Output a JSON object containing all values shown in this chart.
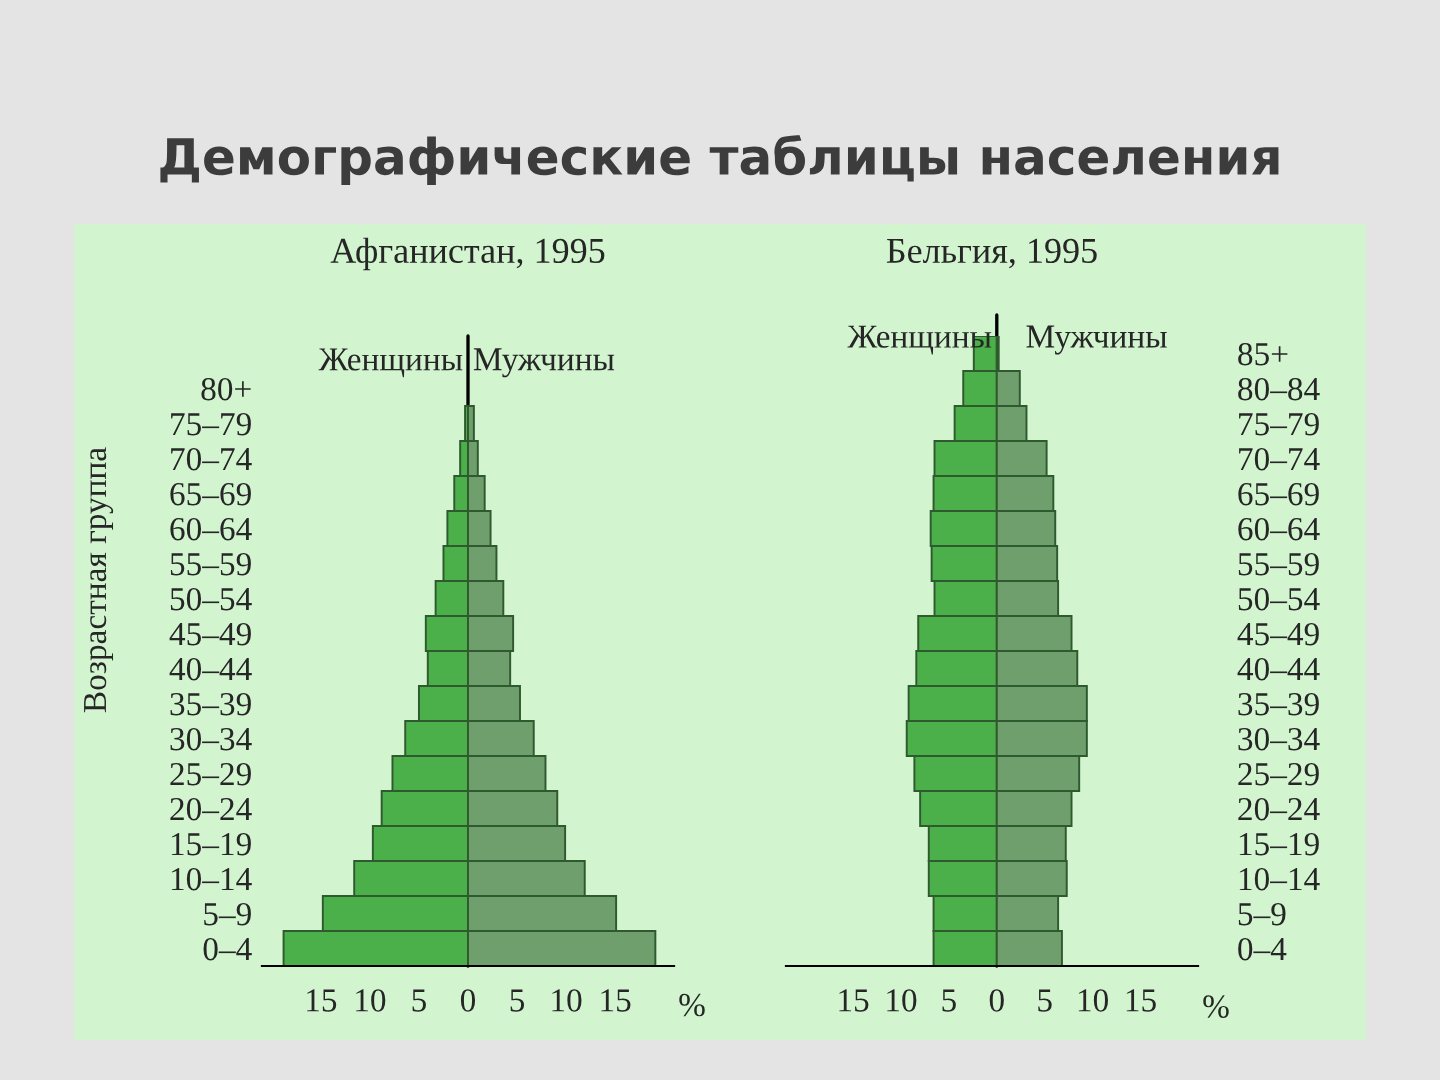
{
  "chart_data": [
    {
      "type": "bar",
      "orientation": "horizontal",
      "title": "Афганистан, 1995",
      "ylabel": "Возрастная группа",
      "xlabel": "%",
      "annotations": [
        "Демографические таблицы населения"
      ],
      "categories": [
        "80+",
        "75–79",
        "70–74",
        "65–69",
        "60–64",
        "55–59",
        "50–54",
        "45–49",
        "40–44",
        "35–39",
        "30–34",
        "25–29",
        "20–24",
        "15–19",
        "10–14",
        "5–9",
        "0–4"
      ],
      "series": [
        {
          "name": "Женщины",
          "color": "#4cb04a",
          "values": [
            null,
            -0.3,
            -0.8,
            -1.4,
            -2.1,
            -2.5,
            -3.3,
            -4.3,
            -4.1,
            -5.0,
            -6.4,
            -7.7,
            -8.8,
            -9.7,
            -11.6,
            -14.8,
            -18.8
          ]
        },
        {
          "name": "Мужчины",
          "color": "#6f9f6c",
          "values": [
            null,
            0.6,
            1.0,
            1.7,
            2.3,
            2.9,
            3.6,
            4.6,
            4.3,
            5.3,
            6.7,
            7.9,
            9.1,
            9.9,
            11.9,
            15.1,
            19.1
          ]
        }
      ],
      "xlim": [
        -21,
        21
      ],
      "xticks": [
        {
          "value": -15,
          "label": "15"
        },
        {
          "value": -10,
          "label": "10"
        },
        {
          "value": -5,
          "label": "5"
        },
        0,
        5,
        10,
        15
      ],
      "ref_lines": [
        {
          "axis": "x",
          "value": 0,
          "color": "#000000"
        }
      ],
      "grid": false,
      "legend": false,
      "stacked": true
    },
    {
      "type": "bar",
      "orientation": "horizontal",
      "title": "Бельгия, 1995",
      "xlabel": "%",
      "categories": [
        "85+",
        "80–84",
        "75–79",
        "70–74",
        "65–69",
        "60–64",
        "55–59",
        "50–54",
        "45–49",
        "40–44",
        "35–39",
        "30–34",
        "25–29",
        "20–24",
        "15–19",
        "10–14",
        "5–9",
        "0–4"
      ],
      "series": [
        {
          "name": "Женщины",
          "color": "#4cb04a",
          "values": [
            -2.4,
            -3.5,
            -4.4,
            -6.5,
            -6.6,
            -6.9,
            -6.8,
            -6.5,
            -8.2,
            -8.4,
            -9.2,
            -9.4,
            -8.6,
            -8.0,
            -7.1,
            -7.1,
            -6.6,
            -6.6
          ]
        },
        {
          "name": "Мужчины",
          "color": "#6f9f6c",
          "values": [
            0.2,
            2.4,
            3.1,
            5.2,
            5.9,
            6.1,
            6.3,
            6.4,
            7.8,
            8.4,
            9.4,
            9.4,
            8.6,
            7.8,
            7.2,
            7.3,
            6.4,
            6.8
          ]
        }
      ],
      "xlim": [
        -22,
        21
      ],
      "xticks": [
        {
          "value": -15,
          "label": "15"
        },
        {
          "value": -10,
          "label": "10"
        },
        {
          "value": -5,
          "label": "5"
        },
        0,
        5,
        10,
        15
      ],
      "ref_lines": [
        {
          "axis": "x",
          "value": 0,
          "color": "#000000"
        }
      ],
      "grid": false,
      "legend": false,
      "stacked": true
    }
  ]
}
